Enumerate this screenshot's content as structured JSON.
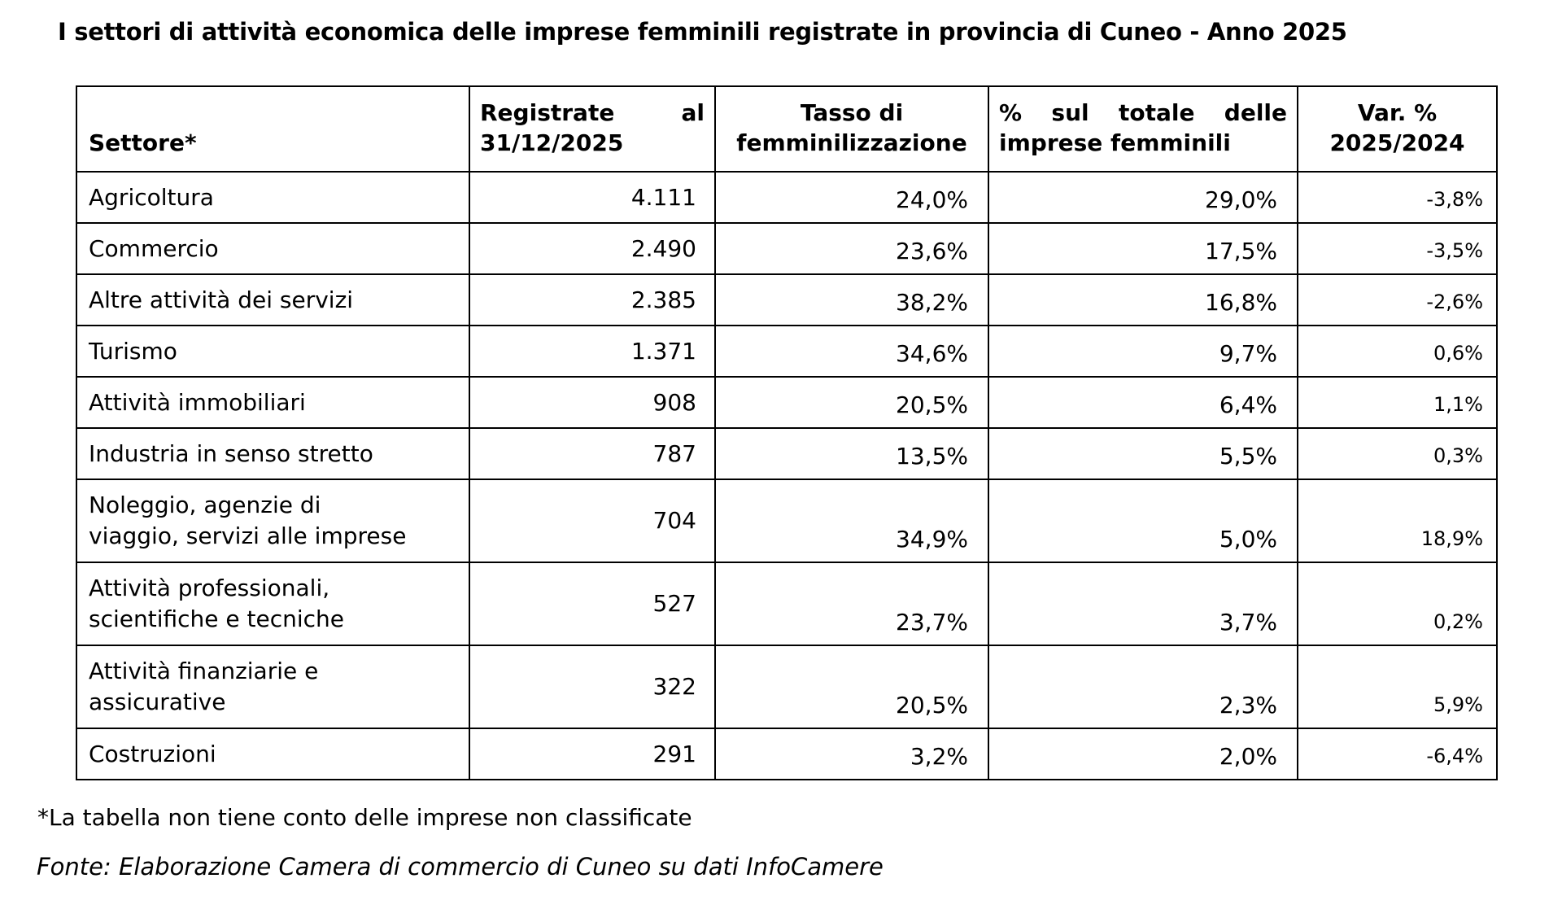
{
  "page": {
    "title": "I settori di attività economica delle imprese femminili registrate in provincia di Cuneo - Anno 2025",
    "footnote": "*La tabella non tiene conto delle imprese non classificate",
    "source": "Fonte: Elaborazione Camera di commercio di Cuneo su dati InfoCamere"
  },
  "table": {
    "headers": [
      "Settore*",
      "Registrate al 31/12/2025",
      "Tasso di femminilizzazione",
      "% sul totale delle imprese femminili",
      "Var. % 2025/2024"
    ],
    "rows": [
      {
        "settore": "Agricoltura",
        "registrate": "4.111",
        "tasso": "24,0%",
        "totale": "29,0%",
        "var": "-3,8%"
      },
      {
        "settore": "Commercio",
        "registrate": "2.490",
        "tasso": "23,6%",
        "totale": "17,5%",
        "var": "-3,5%"
      },
      {
        "settore": "Altre attività dei servizi",
        "registrate": "2.385",
        "tasso": "38,2%",
        "totale": "16,8%",
        "var": "-2,6%"
      },
      {
        "settore": "Turismo",
        "registrate": "1.371",
        "tasso": "34,6%",
        "totale": "9,7%",
        "var": "0,6%"
      },
      {
        "settore": "Attività immobiliari",
        "registrate": "908",
        "tasso": "20,5%",
        "totale": "6,4%",
        "var": "1,1%"
      },
      {
        "settore": "Industria in senso stretto",
        "registrate": "787",
        "tasso": "13,5%",
        "totale": "5,5%",
        "var": "0,3%"
      },
      {
        "settore": "Noleggio, agenzie di\nviaggio, servizi alle imprese",
        "registrate": "704",
        "tasso": "34,9%",
        "totale": "5,0%",
        "var": "18,9%"
      },
      {
        "settore": "Attività professionali,\nscientifiche e tecniche",
        "registrate": "527",
        "tasso": "23,7%",
        "totale": "3,7%",
        "var": "0,2%"
      },
      {
        "settore": "Attività finanziarie e\nassicurative",
        "registrate": "322",
        "tasso": "20,5%",
        "totale": "2,3%",
        "var": "5,9%"
      },
      {
        "settore": "Costruzioni",
        "registrate": "291",
        "tasso": "3,2%",
        "totale": "2,0%",
        "var": "-6,4%"
      }
    ]
  }
}
